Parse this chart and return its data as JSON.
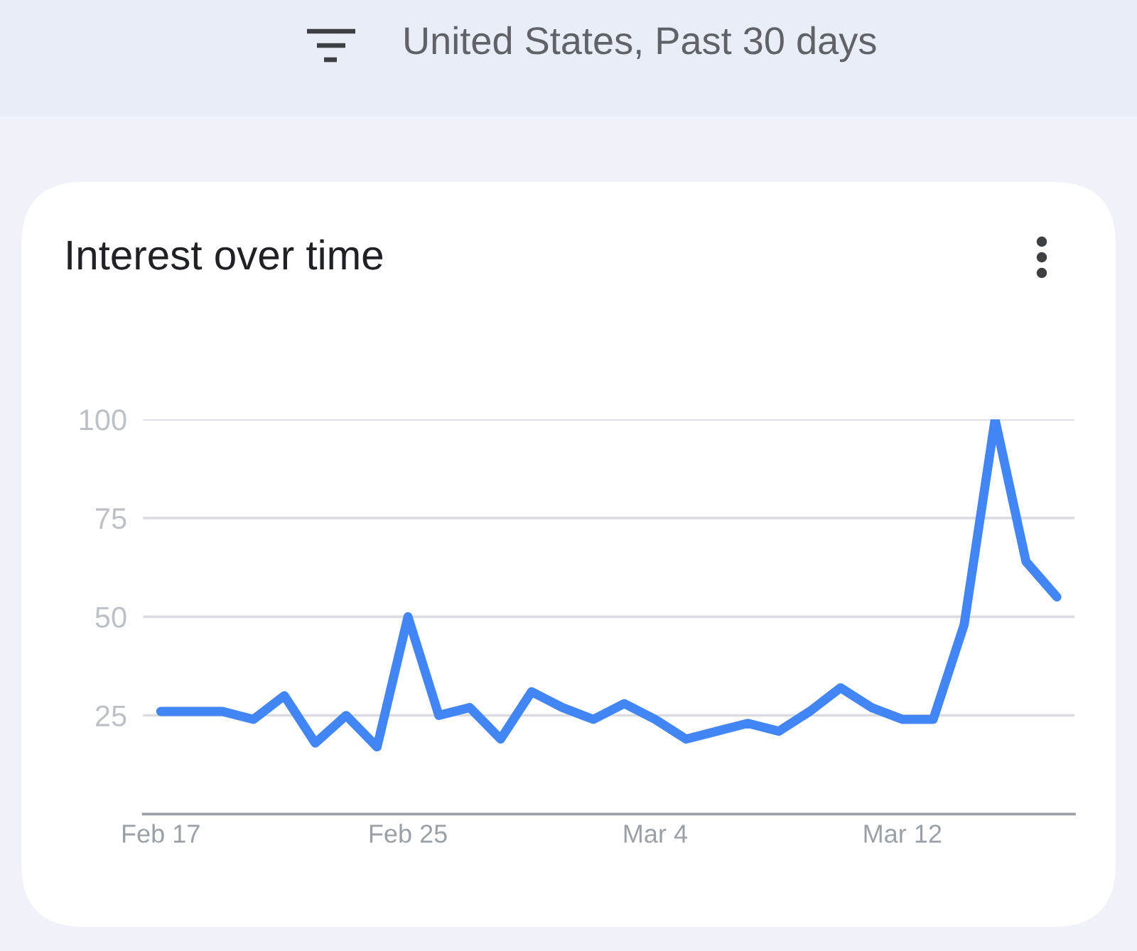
{
  "chart_data": {
    "type": "line",
    "title": "Interest over time",
    "subtitle": "United States, Past 30 days",
    "categories": [
      "Feb 17",
      null,
      null,
      null,
      null,
      null,
      null,
      null,
      "Feb 25",
      null,
      null,
      null,
      null,
      null,
      null,
      null,
      "Mar 4",
      null,
      null,
      null,
      null,
      null,
      null,
      null,
      "Mar 12",
      null,
      null,
      null,
      null,
      null
    ],
    "series": [
      {
        "color": "#4285f4",
        "values": [
          26,
          26,
          26,
          24,
          30,
          18,
          25,
          17,
          50,
          25,
          27,
          19,
          31,
          27,
          24,
          28,
          24,
          19,
          21,
          23,
          21,
          26,
          32,
          27,
          24,
          24,
          48,
          100,
          64,
          55
        ]
      }
    ],
    "ylim": [
      0,
      100
    ],
    "yticks": [
      25,
      50,
      75,
      100
    ],
    "grid": "y",
    "line_style": "solid"
  }
}
